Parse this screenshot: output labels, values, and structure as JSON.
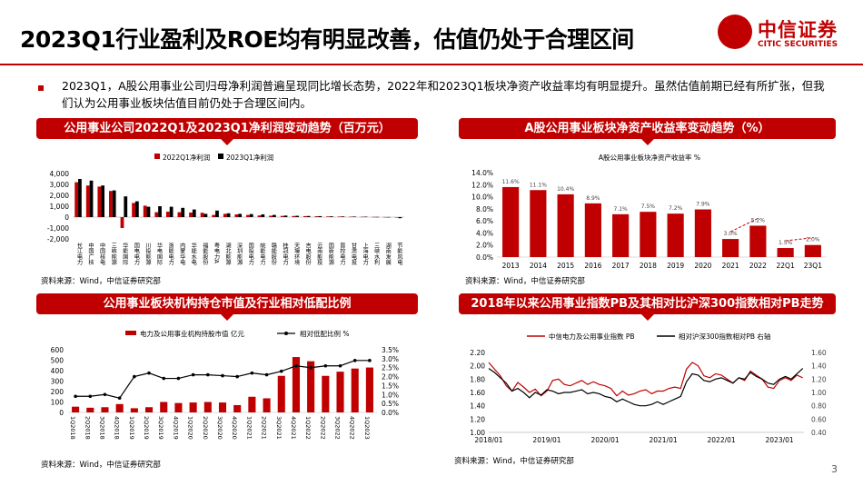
{
  "header": {
    "title": "2023Q1行业盈利及ROE均有明显改善，估值仍处于合理区间",
    "logo_cn": "中信证券",
    "logo_en": "CITIC SECURITIES"
  },
  "bullet": "2023Q1，A股公用事业公司归母净利润普遍呈现同比增长态势，2022年和2023Q1板块净资产收益率均有明显提升。虽然估值前期已经有所扩张，但我们认为公用事业板块估值目前仍处于合理区间内。",
  "page_number": "3",
  "colors": {
    "red": "#c00000",
    "black": "#000000"
  },
  "panels": [
    {
      "header": "公用事业公司2022Q1及2023Q1净利润变动趋势（百万元）",
      "source": "资料来源：Wind，中信证券研究部"
    },
    {
      "header": "A股公用事业板块净资产收益率变动趋势（%）",
      "source": "资料来源：Wind，中信证券研究部"
    },
    {
      "header": "公用事业板块机构持仓市值及行业相对低配比例",
      "source": "资料来源：Wind，中信证券研究部"
    },
    {
      "header": "2018年以来公用事业指数PB及其相对比沪深300指数相对PB走势",
      "source": "资料来源：Wind，中信证券研究部"
    }
  ],
  "chart_data": [
    {
      "type": "bar",
      "legend": [
        "2022Q1净利润",
        "2023Q1净利润"
      ],
      "categories": [
        "长江电力",
        "中国广核",
        "中国核电",
        "三峡能源",
        "华能国际",
        "国电电力",
        "川投能源",
        "华电国际",
        "浙能电力",
        "内蒙华电",
        "华能水电",
        "福能股份",
        "粤电力A",
        "湖北能源",
        "深圳能源",
        "国投电力",
        "皖能电力",
        "赣能股份",
        "桂冠电力",
        "天壕环境",
        "吉电股份",
        "云南能投",
        "国新能源",
        "晋控电力",
        "甘肃电投",
        "上海电力",
        "三峡水利",
        "湖南发展",
        "节能风电"
      ],
      "series": [
        {
          "name": "2022Q1净利润",
          "values": [
            3200,
            2900,
            2800,
            2400,
            -1000,
            1300,
            1050,
            450,
            500,
            450,
            420,
            400,
            200,
            300,
            250,
            200,
            150,
            130,
            110,
            100,
            90,
            80,
            60,
            50,
            40,
            30,
            20,
            10,
            -40
          ]
        },
        {
          "name": "2023Q1净利润",
          "values": [
            3500,
            3350,
            2900,
            2450,
            1900,
            1450,
            950,
            1000,
            950,
            850,
            700,
            300,
            600,
            350,
            300,
            280,
            250,
            200,
            140,
            120,
            100,
            90,
            70,
            60,
            50,
            40,
            20,
            10,
            -100
          ]
        }
      ],
      "ylim": [
        -2000,
        4000
      ],
      "yticks": [
        "4,000",
        "3,000",
        "2,000",
        "1,000",
        "0",
        "-1,000",
        "-2,000"
      ]
    },
    {
      "type": "bar",
      "title": "A股公用事业板块净资产收益率  %",
      "categories": [
        "2013",
        "2014",
        "2015",
        "2016",
        "2017",
        "2018",
        "2019",
        "2020",
        "2021",
        "2022",
        "22Q1",
        "23Q1"
      ],
      "values": [
        11.6,
        11.1,
        10.4,
        8.9,
        7.1,
        7.5,
        7.2,
        7.9,
        3.0,
        5.2,
        1.5,
        2.0
      ],
      "labels": [
        "11.6%",
        "11.1%",
        "10.4%",
        "8.9%",
        "7.1%",
        "7.5%",
        "7.2%",
        "7.9%",
        "3.0%",
        "5.2%",
        "1.5%",
        "2.0%"
      ],
      "ylim": [
        0,
        14
      ],
      "yticks": [
        "14.0%",
        "12.0%",
        "10.0%",
        "8.0%",
        "6.0%",
        "4.0%",
        "2.0%",
        "0.0%"
      ]
    },
    {
      "type": "bar",
      "legend": [
        "电力及公用事业机构持股市值 亿元",
        "相对低配比例 %"
      ],
      "categories": [
        "1Q2018",
        "2Q2018",
        "3Q2018",
        "4Q2018",
        "1Q2019",
        "2Q2019",
        "3Q2019",
        "4Q2019",
        "1Q2020",
        "2Q2020",
        "3Q2020",
        "4Q2020",
        "1Q2021",
        "2Q2021",
        "3Q2021",
        "4Q2021",
        "1Q2022",
        "2Q2022",
        "3Q2022",
        "4Q2022",
        "1Q2023"
      ],
      "series": [
        {
          "name": "电力及公用事业机构持股市值 亿元",
          "values": [
            55,
            45,
            50,
            80,
            40,
            50,
            100,
            90,
            95,
            100,
            95,
            70,
            150,
            135,
            350,
            530,
            490,
            350,
            390,
            420,
            430
          ]
        },
        {
          "name": "相对低配比例 %",
          "values": [
            0.9,
            0.9,
            1.0,
            0.8,
            2.0,
            2.2,
            1.9,
            1.9,
            2.1,
            2.1,
            2.05,
            2.0,
            2.2,
            2.1,
            2.3,
            2.6,
            2.5,
            2.6,
            2.6,
            2.9,
            2.9
          ]
        }
      ],
      "ylim_left": [
        0,
        600
      ],
      "ylim_right": [
        0,
        3.5
      ],
      "yticks_left": [
        "600",
        "500",
        "400",
        "300",
        "200",
        "100",
        "0"
      ],
      "yticks_right": [
        "3.5%",
        "3.0%",
        "2.5%",
        "2.0%",
        "1.5%",
        "1.0%",
        "0.5%",
        "0.0%"
      ]
    },
    {
      "type": "line",
      "legend": [
        "中信电力及公用事业指数 PB",
        "相对沪深300指数相对PB 右轴"
      ],
      "x_ticks": [
        "2018/01",
        "2019/01",
        "2020/01",
        "2021/01",
        "2022/01",
        "2023/01"
      ],
      "ylim_left": [
        1.0,
        2.2
      ],
      "ylim_right": [
        0.4,
        1.6
      ],
      "yticks_left": [
        "2.20",
        "2.00",
        "1.80",
        "1.60",
        "1.40",
        "1.20",
        "1.00"
      ],
      "yticks_right": [
        "1.60",
        "1.40",
        "1.20",
        "1.00",
        "0.80",
        "0.60",
        "0.40"
      ],
      "series": [
        {
          "name": "中信电力及公用事业指数 PB",
          "x": [
            2018.0,
            2018.1,
            2018.2,
            2018.3,
            2018.4,
            2018.5,
            2018.6,
            2018.7,
            2018.8,
            2018.9,
            2019.0,
            2019.1,
            2019.2,
            2019.3,
            2019.4,
            2019.5,
            2019.6,
            2019.7,
            2019.8,
            2019.9,
            2020.0,
            2020.1,
            2020.2,
            2020.3,
            2020.4,
            2020.5,
            2020.6,
            2020.7,
            2020.8,
            2020.9,
            2021.0,
            2021.1,
            2021.2,
            2021.3,
            2021.4,
            2021.5,
            2021.6,
            2021.7,
            2021.8,
            2021.9,
            2022.0,
            2022.1,
            2022.2,
            2022.3,
            2022.4,
            2022.5,
            2022.6,
            2022.7,
            2022.8,
            2022.9,
            2023.0,
            2023.1,
            2023.2,
            2023.3,
            2023.4
          ],
          "values": [
            2.05,
            1.95,
            1.85,
            1.7,
            1.62,
            1.75,
            1.68,
            1.6,
            1.65,
            1.55,
            1.62,
            1.78,
            1.8,
            1.72,
            1.7,
            1.74,
            1.78,
            1.72,
            1.76,
            1.72,
            1.7,
            1.66,
            1.55,
            1.62,
            1.56,
            1.58,
            1.62,
            1.64,
            1.58,
            1.62,
            1.62,
            1.66,
            1.68,
            1.66,
            1.95,
            2.05,
            2.0,
            1.85,
            1.82,
            1.88,
            1.86,
            1.8,
            1.74,
            1.82,
            1.78,
            1.92,
            1.86,
            1.8,
            1.68,
            1.66,
            1.78,
            1.82,
            1.78,
            1.86,
            1.82
          ]
        },
        {
          "name": "相对沪深300指数相对PB 右轴",
          "x": [
            2018.0,
            2018.1,
            2018.2,
            2018.3,
            2018.4,
            2018.5,
            2018.6,
            2018.7,
            2018.8,
            2018.9,
            2019.0,
            2019.1,
            2019.2,
            2019.3,
            2019.4,
            2019.5,
            2019.6,
            2019.7,
            2019.8,
            2019.9,
            2020.0,
            2020.1,
            2020.2,
            2020.3,
            2020.4,
            2020.5,
            2020.6,
            2020.7,
            2020.8,
            2020.9,
            2021.0,
            2021.1,
            2021.2,
            2021.3,
            2021.4,
            2021.5,
            2021.6,
            2021.7,
            2021.8,
            2021.9,
            2022.0,
            2022.1,
            2022.2,
            2022.3,
            2022.4,
            2022.5,
            2022.6,
            2022.7,
            2022.8,
            2022.9,
            2023.0,
            2023.1,
            2023.2,
            2023.3,
            2023.4
          ],
          "values": [
            1.36,
            1.3,
            1.22,
            1.14,
            1.02,
            1.06,
            1.0,
            0.92,
            1.0,
            0.96,
            1.04,
            1.02,
            0.98,
            1.0,
            1.0,
            1.02,
            1.04,
            0.98,
            1.0,
            0.98,
            0.94,
            0.92,
            0.86,
            0.9,
            0.86,
            0.82,
            0.8,
            0.8,
            0.82,
            0.86,
            0.82,
            0.86,
            0.9,
            0.94,
            1.16,
            1.28,
            1.26,
            1.18,
            1.16,
            1.2,
            1.22,
            1.18,
            1.14,
            1.22,
            1.2,
            1.3,
            1.24,
            1.2,
            1.14,
            1.12,
            1.2,
            1.24,
            1.2,
            1.28,
            1.36
          ]
        }
      ]
    }
  ]
}
